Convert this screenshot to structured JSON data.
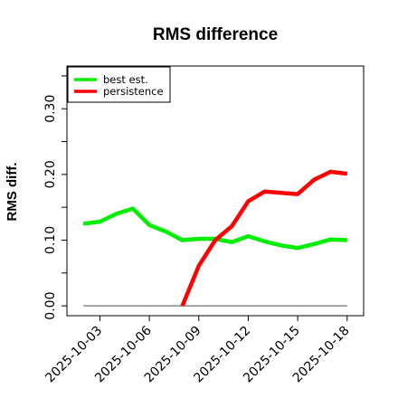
{
  "chart_data": {
    "type": "line",
    "title": "RMS difference",
    "xlabel": "",
    "ylabel": "RMS diff.",
    "x": [
      "2025-10-02",
      "2025-10-03",
      "2025-10-04",
      "2025-10-05",
      "2025-10-06",
      "2025-10-07",
      "2025-10-08",
      "2025-10-09",
      "2025-10-10",
      "2025-10-11",
      "2025-10-12",
      "2025-10-13",
      "2025-10-14",
      "2025-10-15",
      "2025-10-16",
      "2025-10-17",
      "2025-10-18"
    ],
    "xticks": [
      "2025-10-03",
      "2025-10-06",
      "2025-10-09",
      "2025-10-12",
      "2025-10-15",
      "2025-10-18"
    ],
    "xlim": [
      "2025-10-01",
      "2025-10-19"
    ],
    "ylim": [
      -0.015,
      0.365
    ],
    "yticks": [
      "0.00",
      "0.10",
      "0.20",
      "0.30"
    ],
    "grid": false,
    "legend_position": "top-left",
    "reference_line": {
      "value": 0.0,
      "color": "#888888"
    },
    "series": [
      {
        "name": "best est.",
        "color": "#00ee00",
        "values": [
          0.125,
          0.128,
          0.14,
          0.148,
          0.123,
          0.113,
          0.1,
          0.102,
          0.102,
          0.097,
          0.106,
          0.098,
          0.092,
          0.088,
          0.094,
          0.101,
          0.1
        ]
      },
      {
        "name": "persistence",
        "color": "#ff0000",
        "values": [
          null,
          null,
          null,
          null,
          null,
          null,
          0.0,
          0.061,
          0.1,
          0.121,
          0.159,
          0.174,
          0.172,
          0.17,
          0.192,
          0.204,
          0.201
        ]
      }
    ]
  }
}
